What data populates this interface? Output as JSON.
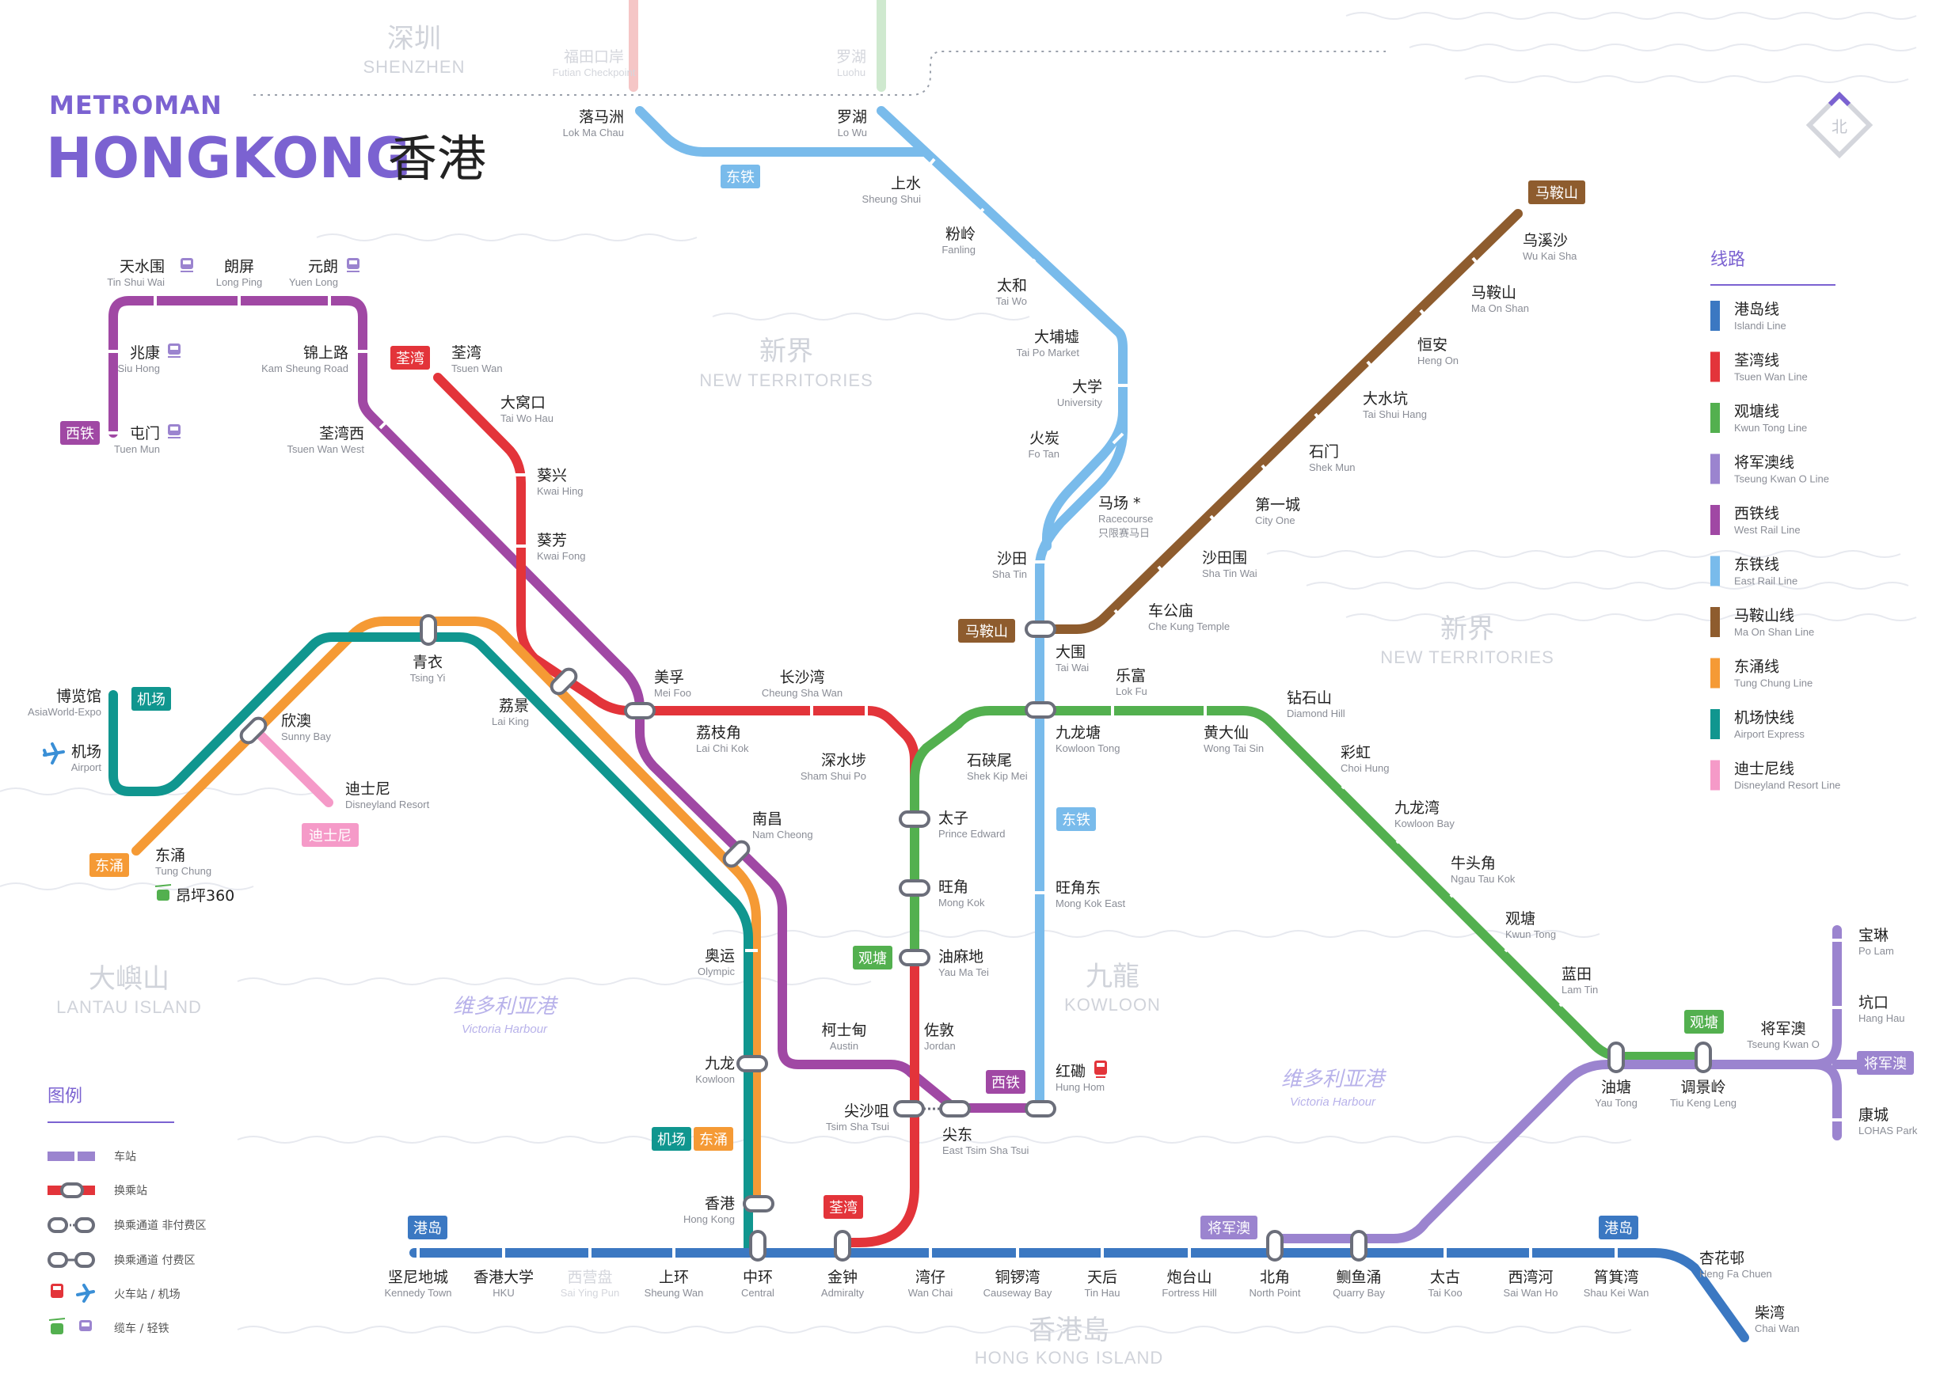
{
  "brand": {
    "small": "METROMAN",
    "big": "HONGKONG",
    "zh": "香港"
  },
  "compass": "北",
  "areas": [
    {
      "zh": "深圳",
      "en": "SHENZHEN"
    },
    {
      "zh": "新界",
      "en": "NEW TERRITORIES"
    },
    {
      "zh": "新界",
      "en": "NEW TERRITORIES"
    },
    {
      "zh": "大嶼山",
      "en": "LANTAU ISLAND"
    },
    {
      "zh": "九龍",
      "en": "KOWLOON"
    },
    {
      "zh": "香港島",
      "en": "HONG KONG ISLAND"
    }
  ],
  "harbour": [
    {
      "zh": "维多利亚港",
      "en": "Victoria Harbour"
    },
    {
      "zh": "维多利亚港",
      "en": "Victoria Harbour"
    }
  ],
  "lines": [
    {
      "id": "island",
      "color": "#3b78c2",
      "zh": "港岛线",
      "en": "Islandi Line"
    },
    {
      "id": "tsuenwan",
      "color": "#e3343a",
      "zh": "荃湾线",
      "en": "Tsuen Wan Line"
    },
    {
      "id": "kwuntong",
      "color": "#53b04f",
      "zh": "观塘线",
      "en": "Kwun Tong Line"
    },
    {
      "id": "tko",
      "color": "#9b84cf",
      "zh": "将军澳线",
      "en": "Tseung Kwan O Line"
    },
    {
      "id": "westrail",
      "color": "#a048a4",
      "zh": "西铁线",
      "en": "West Rail Line"
    },
    {
      "id": "eastrail",
      "color": "#79bbeb",
      "zh": "东铁线",
      "en": "East Rail Line"
    },
    {
      "id": "maonshan",
      "color": "#8e5c2e",
      "zh": "马鞍山线",
      "en": "Ma On Shan Line"
    },
    {
      "id": "tungchung",
      "color": "#f59a35",
      "zh": "东涌线",
      "en": "Tung Chung Line"
    },
    {
      "id": "airport",
      "color": "#10968f",
      "zh": "机场快线",
      "en": "Airport Express"
    },
    {
      "id": "disney",
      "color": "#f59ac8",
      "zh": "迪士尼线",
      "en": "Disneyland Resort Line"
    }
  ],
  "tags": [
    {
      "text": "东铁",
      "color": "#79bbeb"
    },
    {
      "text": "马鞍山",
      "color": "#8e5c2e"
    },
    {
      "text": "荃湾",
      "color": "#e3343a"
    },
    {
      "text": "西铁",
      "color": "#a048a4"
    },
    {
      "text": "马鞍山",
      "color": "#8e5c2e"
    },
    {
      "text": "机场",
      "color": "#10968f"
    },
    {
      "text": "迪士尼",
      "color": "#f59ac8"
    },
    {
      "text": "东涌",
      "color": "#f59a35"
    },
    {
      "text": "东铁",
      "color": "#79bbeb"
    },
    {
      "text": "观塘",
      "color": "#53b04f"
    },
    {
      "text": "西铁",
      "color": "#a048a4"
    },
    {
      "text": "机场",
      "color": "#10968f"
    },
    {
      "text": "东涌",
      "color": "#f59a35"
    },
    {
      "text": "荃湾",
      "color": "#e3343a"
    },
    {
      "text": "港岛",
      "color": "#3b78c2"
    },
    {
      "text": "将军澳",
      "color": "#9b84cf"
    },
    {
      "text": "港岛",
      "color": "#3b78c2"
    },
    {
      "text": "观塘",
      "color": "#53b04f"
    },
    {
      "text": "将军澳",
      "color": "#9b84cf"
    }
  ],
  "stations": [
    {
      "zh": "福田口岸",
      "en": "Futian Checkpoint",
      "faint": true
    },
    {
      "zh": "罗湖",
      "en": "Luohu",
      "faint": true
    },
    {
      "zh": "落马洲",
      "en": "Lok Ma Chau"
    },
    {
      "zh": "罗湖",
      "en": "Lo Wu"
    },
    {
      "zh": "上水",
      "en": "Sheung Shui"
    },
    {
      "zh": "粉岭",
      "en": "Fanling"
    },
    {
      "zh": "太和",
      "en": "Tai Wo"
    },
    {
      "zh": "大埔墟",
      "en": "Tai Po Market"
    },
    {
      "zh": "大学",
      "en": "University"
    },
    {
      "zh": "火炭",
      "en": "Fo Tan"
    },
    {
      "zh": "马场 *",
      "en": "Racecourse",
      "note": "只限赛马日"
    },
    {
      "zh": "沙田",
      "en": "Sha Tin"
    },
    {
      "zh": "大围",
      "en": "Tai Wai"
    },
    {
      "zh": "九龙塘",
      "en": "Kowloon Tong"
    },
    {
      "zh": "旺角东",
      "en": "Mong Kok East"
    },
    {
      "zh": "红磡",
      "en": "Hung Hom"
    },
    {
      "zh": "乌溪沙",
      "en": "Wu Kai Sha"
    },
    {
      "zh": "马鞍山",
      "en": "Ma On Shan"
    },
    {
      "zh": "恒安",
      "en": "Heng On"
    },
    {
      "zh": "大水坑",
      "en": "Tai Shui Hang"
    },
    {
      "zh": "石门",
      "en": "Shek Mun"
    },
    {
      "zh": "第一城",
      "en": "City One"
    },
    {
      "zh": "沙田围",
      "en": "Sha Tin Wai"
    },
    {
      "zh": "车公庙",
      "en": "Che Kung Temple"
    },
    {
      "zh": "天水围",
      "en": "Tin Shui Wai"
    },
    {
      "zh": "朗屏",
      "en": "Long Ping"
    },
    {
      "zh": "元朗",
      "en": "Yuen Long"
    },
    {
      "zh": "兆康",
      "en": "Siu Hong"
    },
    {
      "zh": "锦上路",
      "en": "Kam Sheung Road"
    },
    {
      "zh": "屯门",
      "en": "Tuen Mun"
    },
    {
      "zh": "荃湾西",
      "en": "Tsuen Wan West"
    },
    {
      "zh": "荃湾",
      "en": "Tsuen Wan"
    },
    {
      "zh": "大窝口",
      "en": "Tai Wo Hau"
    },
    {
      "zh": "葵兴",
      "en": "Kwai Hing"
    },
    {
      "zh": "葵芳",
      "en": "Kwai Fong"
    },
    {
      "zh": "美孚",
      "en": "Mei Foo"
    },
    {
      "zh": "荔枝角",
      "en": "Lai Chi Kok"
    },
    {
      "zh": "长沙湾",
      "en": "Cheung Sha Wan"
    },
    {
      "zh": "深水埗",
      "en": "Sham Shui Po"
    },
    {
      "zh": "太子",
      "en": "Prince Edward"
    },
    {
      "zh": "旺角",
      "en": "Mong Kok"
    },
    {
      "zh": "油麻地",
      "en": "Yau Ma Tei"
    },
    {
      "zh": "佐敦",
      "en": "Jordan"
    },
    {
      "zh": "尖沙咀",
      "en": "Tsim Sha Tsui"
    },
    {
      "zh": "尖东",
      "en": "East Tsim Sha Tsui"
    },
    {
      "zh": "柯士甸",
      "en": "Austin"
    },
    {
      "zh": "南昌",
      "en": "Nam Cheong"
    },
    {
      "zh": "青衣",
      "en": "Tsing Yi"
    },
    {
      "zh": "荔景",
      "en": "Lai King"
    },
    {
      "zh": "欣澳",
      "en": "Sunny Bay"
    },
    {
      "zh": "迪士尼",
      "en": "Disneyland Resort"
    },
    {
      "zh": "博览馆",
      "en": "AsiaWorld-Expo"
    },
    {
      "zh": "机场",
      "en": "Airport"
    },
    {
      "zh": "东涌",
      "en": "Tung Chung"
    },
    {
      "zh": "昂坪360",
      "en": ""
    },
    {
      "zh": "奥运",
      "en": "Olympic"
    },
    {
      "zh": "九龙",
      "en": "Kowloon"
    },
    {
      "zh": "香港",
      "en": "Hong Kong"
    },
    {
      "zh": "石硖尾",
      "en": "Shek Kip Mei"
    },
    {
      "zh": "乐富",
      "en": "Lok Fu"
    },
    {
      "zh": "黄大仙",
      "en": "Wong Tai Sin"
    },
    {
      "zh": "钻石山",
      "en": "Diamond Hill"
    },
    {
      "zh": "彩虹",
      "en": "Choi Hung"
    },
    {
      "zh": "九龙湾",
      "en": "Kowloon Bay"
    },
    {
      "zh": "牛头角",
      "en": "Ngau Tau Kok"
    },
    {
      "zh": "观塘",
      "en": "Kwun Tong"
    },
    {
      "zh": "蓝田",
      "en": "Lam Tin"
    },
    {
      "zh": "油塘",
      "en": "Yau Tong"
    },
    {
      "zh": "调景岭",
      "en": "Tiu Keng Leng"
    },
    {
      "zh": "将军澳",
      "en": "Tseung Kwan O"
    },
    {
      "zh": "宝琳",
      "en": "Po Lam"
    },
    {
      "zh": "坑口",
      "en": "Hang Hau"
    },
    {
      "zh": "康城",
      "en": "LOHAS Park"
    },
    {
      "zh": "坚尼地城",
      "en": "Kennedy Town"
    },
    {
      "zh": "香港大学",
      "en": "HKU"
    },
    {
      "zh": "西营盘",
      "en": "Sai Ying Pun",
      "faint": true
    },
    {
      "zh": "上环",
      "en": "Sheung Wan"
    },
    {
      "zh": "中环",
      "en": "Central"
    },
    {
      "zh": "金钟",
      "en": "Admiralty"
    },
    {
      "zh": "湾仔",
      "en": "Wan Chai"
    },
    {
      "zh": "铜锣湾",
      "en": "Causeway Bay"
    },
    {
      "zh": "天后",
      "en": "Tin Hau"
    },
    {
      "zh": "炮台山",
      "en": "Fortress Hill"
    },
    {
      "zh": "北角",
      "en": "North Point"
    },
    {
      "zh": "鲗鱼涌",
      "en": "Quarry Bay"
    },
    {
      "zh": "太古",
      "en": "Tai Koo"
    },
    {
      "zh": "西湾河",
      "en": "Sai Wan Ho"
    },
    {
      "zh": "筲箕湾",
      "en": "Shau Kei Wan"
    },
    {
      "zh": "杏花邨",
      "en": "Heng Fa Chuen"
    },
    {
      "zh": "柴湾",
      "en": "Chai Wan"
    }
  ],
  "legend_lines_title": "线路",
  "legend_symbols": {
    "title": "图例",
    "items": [
      "车站",
      "换乘站",
      "换乘通道 非付费区",
      "换乘通道 付费区",
      "火车站 / 机场",
      "缆车 / 轻铁"
    ]
  }
}
